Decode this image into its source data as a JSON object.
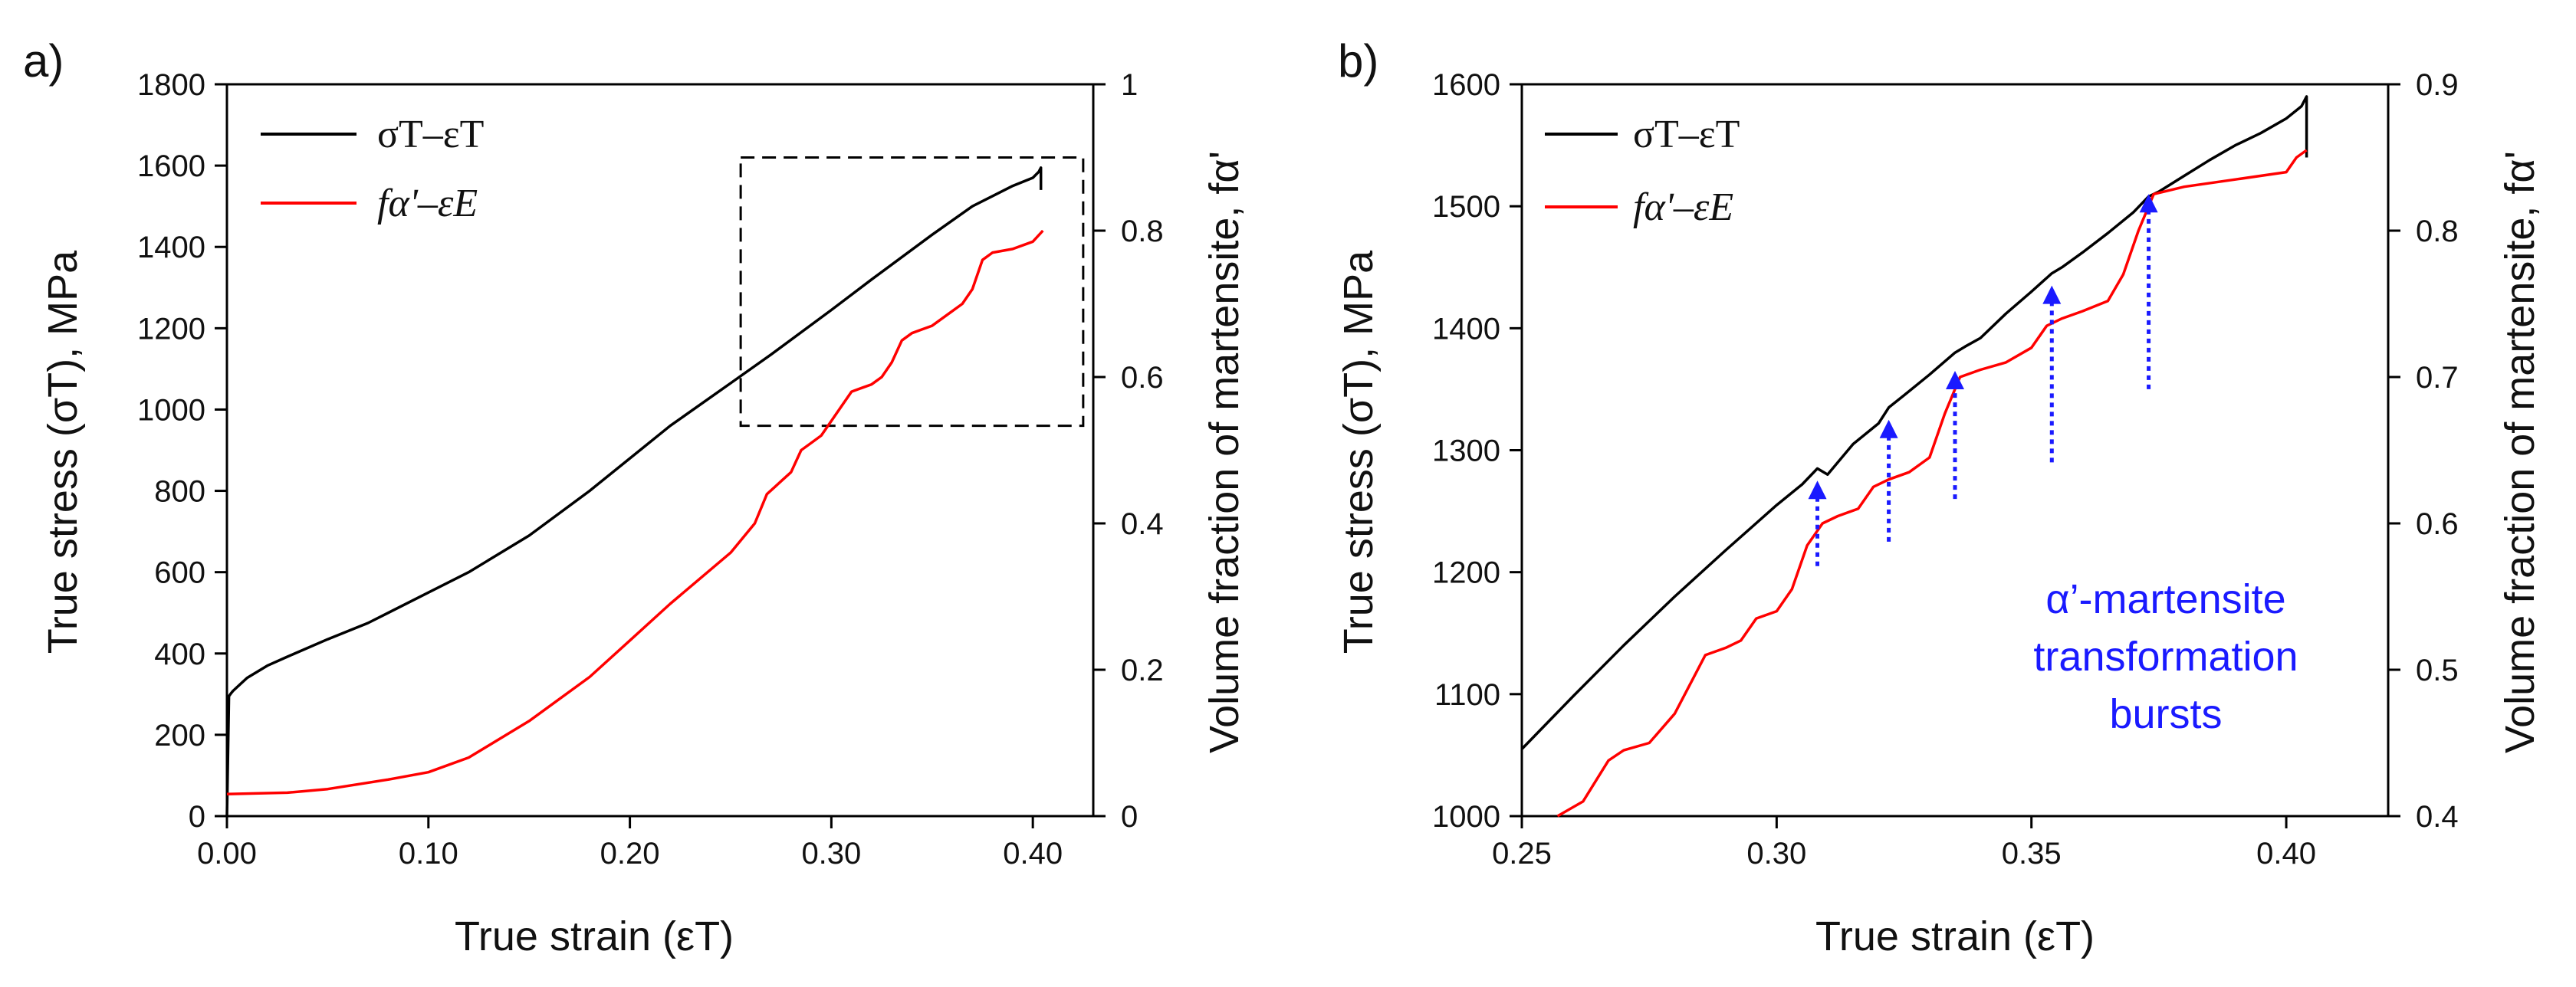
{
  "chart_data": [
    {
      "type": "line",
      "panel_label": "a)",
      "xlabel": "True strain (εT)",
      "ylabel_left": "True stress (σT), MPa",
      "ylabel_right": "Volume fraction of martensite, fα'",
      "xlim": [
        0.0,
        0.43
      ],
      "ylim_left": [
        0,
        1800
      ],
      "ylim_right": [
        0,
        1
      ],
      "x_ticks": [
        "0.00",
        "0.10",
        "0.20",
        "0.30",
        "0.40"
      ],
      "x_tick_values": [
        0.0,
        0.1,
        0.2,
        0.3,
        0.4
      ],
      "y_ticks_left": [
        "0",
        "200",
        "400",
        "600",
        "800",
        "1000",
        "1200",
        "1400",
        "1600",
        "1800"
      ],
      "y_tick_values_left": [
        0,
        200,
        400,
        600,
        800,
        1000,
        1200,
        1400,
        1600,
        1800
      ],
      "y_ticks_right": [
        "0",
        "0.2",
        "0.4",
        "0.6",
        "0.8",
        "1"
      ],
      "y_tick_values_right": [
        0,
        0.2,
        0.4,
        0.6,
        0.8,
        1.0
      ],
      "legend": [
        {
          "label": "σT–εT",
          "color": "#000000"
        },
        {
          "label": "fα'–εE",
          "color": "#ff0000"
        }
      ],
      "legend_position": "top-left",
      "zoom_box": {
        "x": [
          0.255,
          0.425
        ],
        "y": [
          960,
          1620
        ]
      },
      "series": [
        {
          "name": "σT–εT",
          "axis": "left",
          "color": "#000000",
          "x": [
            0.0,
            0.001,
            0.002,
            0.003,
            0.01,
            0.02,
            0.03,
            0.05,
            0.07,
            0.1,
            0.12,
            0.15,
            0.18,
            0.2,
            0.22,
            0.25,
            0.27,
            0.3,
            0.32,
            0.35,
            0.37,
            0.39,
            0.4,
            0.403,
            0.404,
            0.404
          ],
          "values": [
            0,
            295,
            302,
            308,
            340,
            370,
            392,
            435,
            475,
            550,
            600,
            690,
            800,
            880,
            960,
            1065,
            1135,
            1245,
            1320,
            1430,
            1500,
            1550,
            1570,
            1585,
            1595,
            1540
          ]
        },
        {
          "name": "fα'–εE",
          "axis": "right",
          "color": "#ff0000",
          "x": [
            0.0,
            0.03,
            0.05,
            0.08,
            0.1,
            0.12,
            0.15,
            0.18,
            0.2,
            0.22,
            0.25,
            0.262,
            0.268,
            0.272,
            0.276,
            0.28,
            0.285,
            0.29,
            0.295,
            0.3,
            0.305,
            0.31,
            0.315,
            0.32,
            0.325,
            0.33,
            0.335,
            0.34,
            0.345,
            0.35,
            0.355,
            0.36,
            0.365,
            0.37,
            0.375,
            0.38,
            0.39,
            0.4,
            0.405
          ],
          "values": [
            0.03,
            0.032,
            0.037,
            0.05,
            0.06,
            0.08,
            0.13,
            0.19,
            0.24,
            0.29,
            0.36,
            0.4,
            0.44,
            0.45,
            0.46,
            0.47,
            0.5,
            0.51,
            0.52,
            0.54,
            0.56,
            0.58,
            0.585,
            0.59,
            0.6,
            0.62,
            0.65,
            0.66,
            0.665,
            0.67,
            0.68,
            0.69,
            0.7,
            0.72,
            0.76,
            0.77,
            0.775,
            0.785,
            0.8
          ]
        }
      ]
    },
    {
      "type": "line",
      "panel_label": "b)",
      "xlabel": "True strain (εT)",
      "ylabel_left": "True stress (σT), MPa",
      "ylabel_right": "Volume fraction of martensite, fα'",
      "xlim": [
        0.25,
        0.42
      ],
      "ylim_left": [
        1000,
        1600
      ],
      "ylim_right": [
        0.4,
        0.9
      ],
      "x_ticks": [
        "0.25",
        "0.30",
        "0.35",
        "0.40"
      ],
      "x_tick_values": [
        0.25,
        0.3,
        0.35,
        0.4
      ],
      "y_ticks_left": [
        "1000",
        "1100",
        "1200",
        "1300",
        "1400",
        "1500",
        "1600"
      ],
      "y_tick_values_left": [
        1000,
        1100,
        1200,
        1300,
        1400,
        1500,
        1600
      ],
      "y_ticks_right": [
        "0.4",
        "0.5",
        "0.6",
        "0.7",
        "0.8",
        "0.9"
      ],
      "y_tick_values_right": [
        0.4,
        0.5,
        0.6,
        0.7,
        0.8,
        0.9
      ],
      "legend": [
        {
          "label": "σT–εT",
          "color": "#000000"
        },
        {
          "label": "fα'–εE",
          "color": "#ff0000"
        }
      ],
      "legend_position": "top-left",
      "annotation": {
        "lines": [
          "α’-martensite",
          "transformation",
          "bursts"
        ],
        "color": "#1a1aff",
        "x": 0.365,
        "y": 1170
      },
      "arrows": [
        {
          "x": 0.308,
          "from": 1205,
          "to": 1275
        },
        {
          "x": 0.322,
          "from": 1225,
          "to": 1325
        },
        {
          "x": 0.335,
          "from": 1260,
          "to": 1365
        },
        {
          "x": 0.354,
          "from": 1290,
          "to": 1435
        },
        {
          "x": 0.373,
          "from": 1350,
          "to": 1510
        }
      ],
      "series": [
        {
          "name": "σT–εT",
          "axis": "left",
          "color": "#000000",
          "x": [
            0.25,
            0.26,
            0.27,
            0.28,
            0.29,
            0.3,
            0.305,
            0.308,
            0.31,
            0.315,
            0.32,
            0.322,
            0.325,
            0.33,
            0.335,
            0.337,
            0.34,
            0.345,
            0.35,
            0.354,
            0.356,
            0.36,
            0.365,
            0.37,
            0.373,
            0.375,
            0.38,
            0.385,
            0.39,
            0.395,
            0.4,
            0.403,
            0.404,
            0.404
          ],
          "values": [
            1055,
            1098,
            1140,
            1180,
            1218,
            1255,
            1272,
            1285,
            1280,
            1305,
            1322,
            1335,
            1345,
            1362,
            1380,
            1385,
            1392,
            1412,
            1430,
            1445,
            1450,
            1462,
            1478,
            1495,
            1508,
            1512,
            1525,
            1538,
            1550,
            1560,
            1572,
            1582,
            1590,
            1540
          ]
        },
        {
          "name": "fα'–εE",
          "axis": "right",
          "color": "#ff0000",
          "x": [
            0.257,
            0.262,
            0.267,
            0.27,
            0.275,
            0.28,
            0.283,
            0.286,
            0.29,
            0.293,
            0.296,
            0.3,
            0.303,
            0.306,
            0.309,
            0.312,
            0.316,
            0.319,
            0.322,
            0.326,
            0.33,
            0.333,
            0.336,
            0.34,
            0.345,
            0.35,
            0.353,
            0.356,
            0.36,
            0.365,
            0.368,
            0.371,
            0.374,
            0.38,
            0.39,
            0.4,
            0.402,
            0.404
          ],
          "values": [
            0.4,
            0.41,
            0.438,
            0.445,
            0.45,
            0.47,
            0.49,
            0.51,
            0.515,
            0.52,
            0.535,
            0.54,
            0.555,
            0.585,
            0.6,
            0.605,
            0.61,
            0.625,
            0.63,
            0.635,
            0.645,
            0.675,
            0.7,
            0.705,
            0.71,
            0.72,
            0.735,
            0.74,
            0.745,
            0.752,
            0.77,
            0.8,
            0.825,
            0.83,
            0.835,
            0.84,
            0.85,
            0.855
          ]
        }
      ]
    }
  ]
}
